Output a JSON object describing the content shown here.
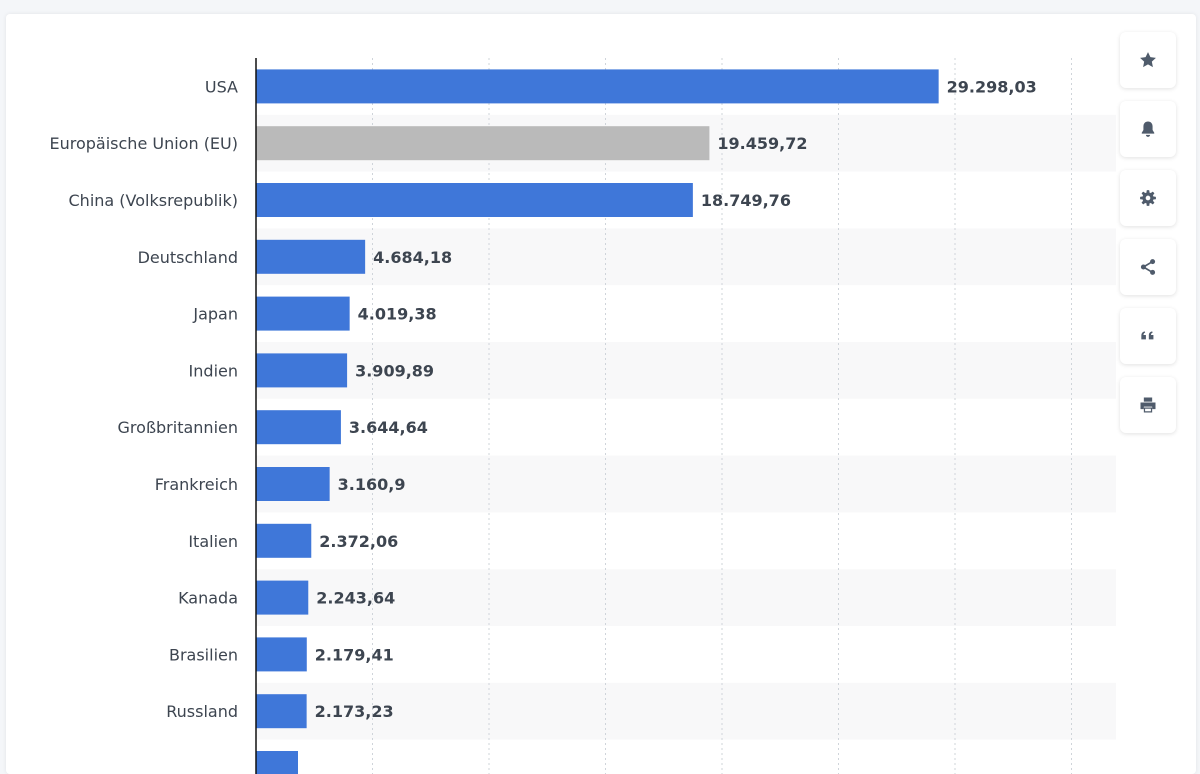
{
  "chart_data": {
    "type": "bar",
    "orientation": "horizontal",
    "title": "",
    "xlabel": "",
    "ylabel": "",
    "xlim": [
      0,
      35000
    ],
    "grid": true,
    "categories": [
      "USA",
      "Europäische Union (EU)",
      "China (Volksrepublik)",
      "Deutschland",
      "Japan",
      "Indien",
      "Großbritannien",
      "Frankreich",
      "Italien",
      "Kanada",
      "Brasilien",
      "Russland"
    ],
    "values": [
      29298.03,
      19459.72,
      18749.76,
      4684.18,
      4019.38,
      3909.89,
      3644.64,
      3160.9,
      2372.06,
      2243.64,
      2179.41,
      2173.23
    ],
    "value_labels": [
      "29.298,03",
      "19.459,72",
      "18.749,76",
      "4.684,18",
      "4.019,38",
      "3.909,89",
      "3.644,64",
      "3.160,9",
      "2.372,06",
      "2.243,64",
      "2.179,41",
      "2.173,23"
    ],
    "highlight_category": "Europäische Union (EU)",
    "colors": {
      "bar": "#3f77d9",
      "highlight": "#bababa",
      "axis": "#111111",
      "grid": "#cfd4da",
      "band": "#f8f8f9"
    }
  },
  "toolbar": {
    "buttons": [
      {
        "icon": "star-icon",
        "label": "favorite"
      },
      {
        "icon": "bell-icon",
        "label": "notification"
      },
      {
        "icon": "gear-icon",
        "label": "settings"
      },
      {
        "icon": "share-icon",
        "label": "share"
      },
      {
        "icon": "quote-icon",
        "label": "cite"
      },
      {
        "icon": "print-icon",
        "label": "print"
      }
    ],
    "icon_color": "#4f5b6b"
  }
}
